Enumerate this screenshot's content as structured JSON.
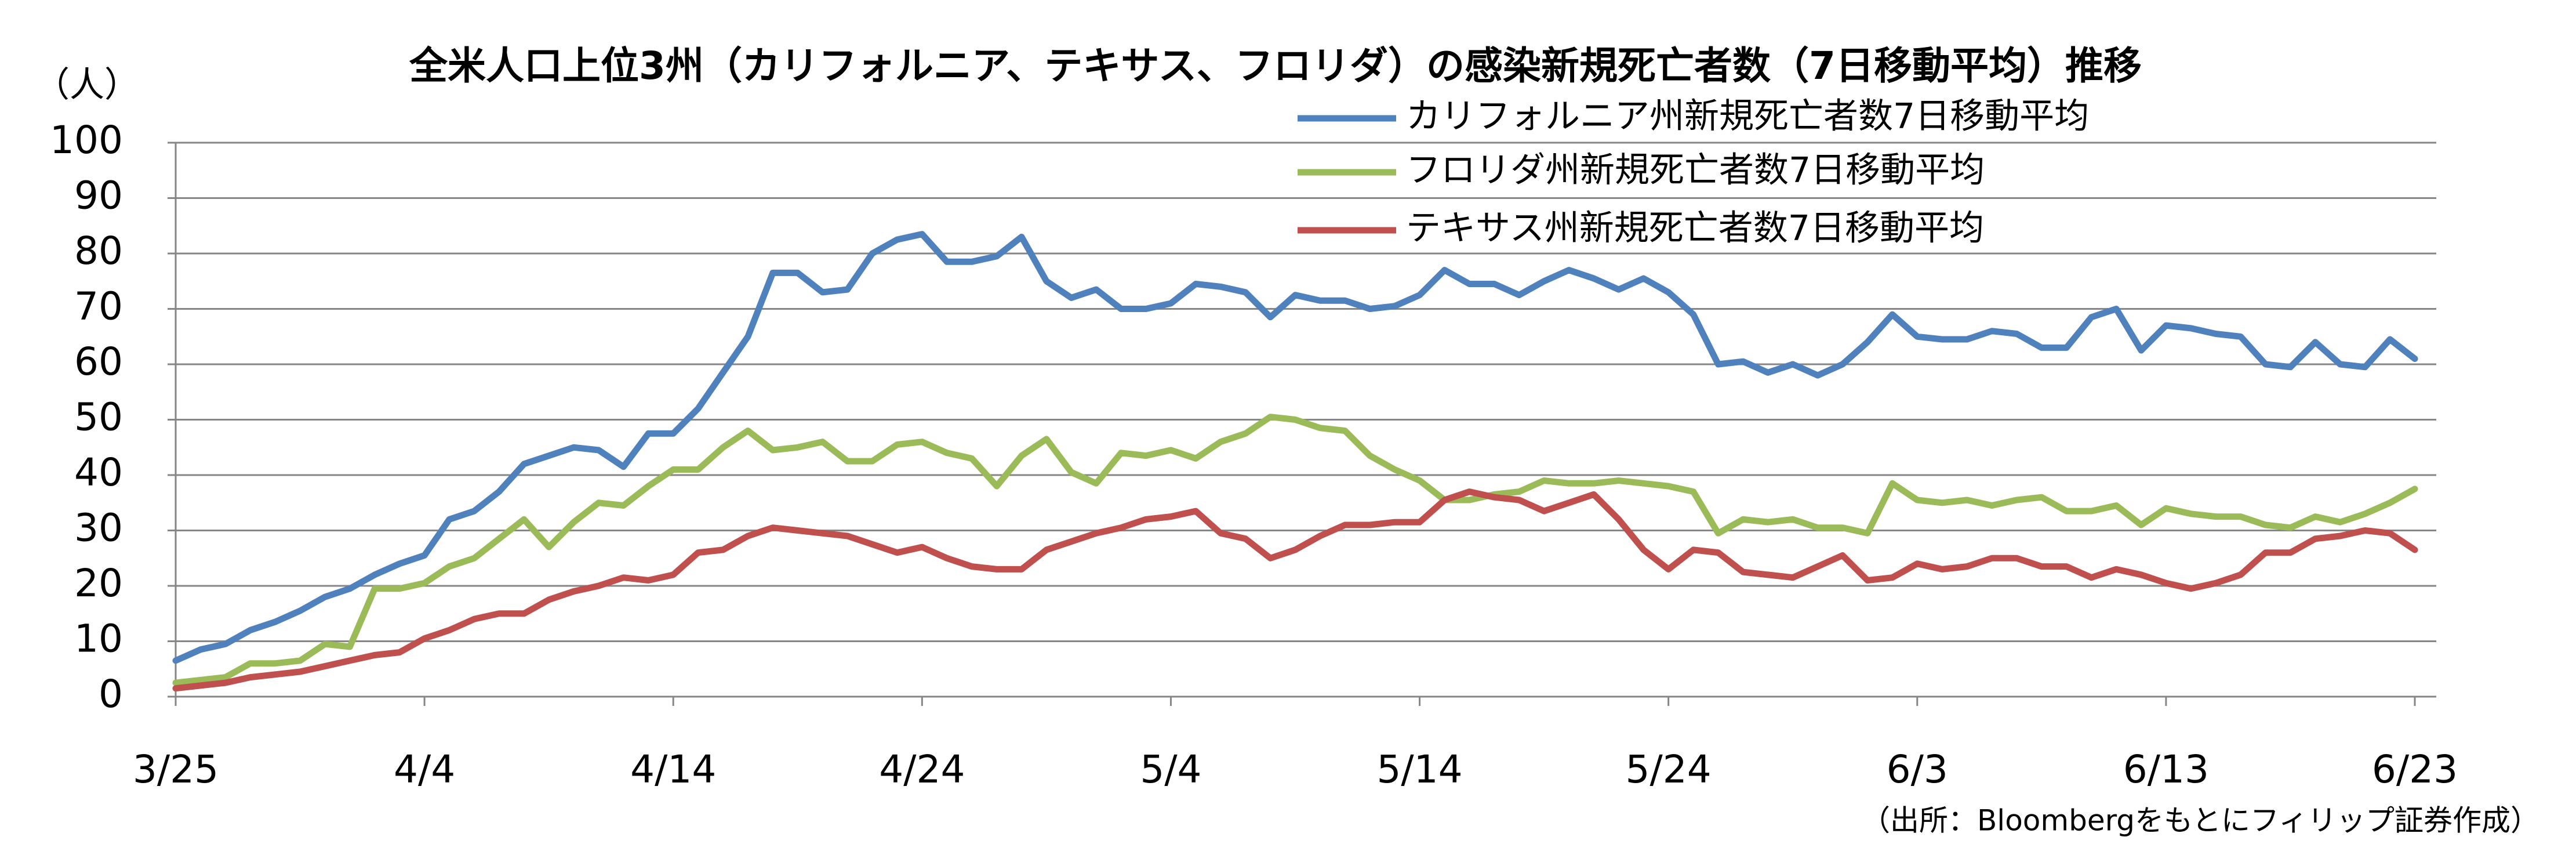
{
  "chart_data": {
    "type": "line",
    "title": "全米人口上位3州（カリフォルニア、テキサス、フロリダ）の感染新規死亡者数（7日移動平均）推移",
    "y_label": "（人）",
    "source": "（出所：Bloombergをもとにフィリップ証券作成）",
    "categories": [
      "3/25",
      null,
      null,
      null,
      null,
      null,
      null,
      null,
      null,
      null,
      "4/4",
      null,
      null,
      null,
      null,
      null,
      null,
      null,
      null,
      null,
      "4/14",
      null,
      null,
      null,
      null,
      null,
      null,
      null,
      null,
      null,
      "4/24",
      null,
      null,
      null,
      null,
      null,
      null,
      null,
      null,
      null,
      "5/4",
      null,
      null,
      null,
      null,
      null,
      null,
      null,
      null,
      null,
      "5/14",
      null,
      null,
      null,
      null,
      null,
      null,
      null,
      null,
      null,
      "5/24",
      null,
      null,
      null,
      null,
      null,
      null,
      null,
      null,
      null,
      "6/3",
      null,
      null,
      null,
      null,
      null,
      null,
      null,
      null,
      null,
      "6/13",
      null,
      null,
      null,
      null,
      null,
      null,
      null,
      null,
      null,
      "6/23"
    ],
    "series": [
      {
        "name": "カリフォルニア州新規死亡者数7日移動平均",
        "color": "#4f81bd",
        "values": [
          6.5,
          8.5,
          9.5,
          12,
          13.5,
          15.5,
          18,
          19.5,
          22,
          24,
          25.5,
          32,
          33.5,
          37,
          42,
          43.5,
          45,
          44.5,
          41.5,
          47.5,
          47.5,
          52,
          58.5,
          65,
          76.5,
          76.5,
          73,
          73.5,
          80,
          82.5,
          83.5,
          78.5,
          78.5,
          79.5,
          83,
          75,
          72,
          73.5,
          70,
          70,
          71,
          74.5,
          74,
          73,
          68.5,
          72.5,
          71.5,
          71.5,
          70,
          70.5,
          72.5,
          77,
          74.5,
          74.5,
          72.5,
          75,
          77,
          75.5,
          73.5,
          75.5,
          73,
          69,
          60,
          60.5,
          58.5,
          60,
          58,
          60,
          64,
          69,
          65,
          64.5,
          64.5,
          66,
          65.5,
          63,
          63,
          68.5,
          70,
          62.5,
          67,
          66.5,
          65.5,
          65,
          60,
          59.5,
          64,
          60,
          59.5,
          64.5,
          61
        ]
      },
      {
        "name": "フロリダ州新規死亡者数7日移動平均",
        "color": "#9bbb59",
        "values": [
          2.5,
          3,
          3.5,
          6,
          6,
          6.5,
          9.5,
          9,
          19.5,
          19.5,
          20.5,
          23.5,
          25,
          28.5,
          32,
          27,
          31.5,
          35,
          34.5,
          38,
          41,
          41,
          45,
          48,
          44.5,
          45,
          46,
          42.5,
          42.5,
          45.5,
          46,
          44,
          43,
          38,
          43.5,
          46.5,
          40.5,
          38.5,
          44,
          43.5,
          44.5,
          43,
          46,
          47.5,
          50.5,
          50,
          48.5,
          48,
          43.5,
          41,
          39,
          35.5,
          35.5,
          36.5,
          37,
          39,
          38.5,
          38.5,
          39,
          38.5,
          38,
          37,
          29.5,
          32,
          31.5,
          32,
          30.5,
          30.5,
          29.5,
          38.5,
          35.5,
          35,
          35.5,
          34.5,
          35.5,
          36,
          33.5,
          33.5,
          34.5,
          31,
          34,
          33,
          32.5,
          32.5,
          31,
          30.5,
          32.5,
          31.5,
          33,
          35,
          37.5
        ]
      },
      {
        "name": "テキサス州新規死亡者数7日移動平均",
        "color": "#c0504d",
        "values": [
          1.5,
          2,
          2.5,
          3.5,
          4,
          4.5,
          5.5,
          6.5,
          7.5,
          8,
          10.5,
          12,
          14,
          15,
          15,
          17.5,
          19,
          20,
          21.5,
          21,
          22,
          26,
          26.5,
          29,
          30.5,
          30,
          29.5,
          29,
          27.5,
          26,
          27,
          25,
          23.5,
          23,
          23,
          26.5,
          28,
          29.5,
          30.5,
          32,
          32.5,
          33.5,
          29.5,
          28.5,
          25,
          26.5,
          29,
          31,
          31,
          31.5,
          31.5,
          35.5,
          37,
          36,
          35.5,
          33.5,
          35,
          36.5,
          32,
          26.5,
          23,
          26.5,
          26,
          22.5,
          22,
          21.5,
          23.5,
          25.5,
          21,
          21.5,
          24,
          23,
          23.5,
          25,
          25,
          23.5,
          23.5,
          21.5,
          23,
          22,
          20.5,
          19.5,
          20.5,
          22,
          26,
          26,
          28.5,
          29,
          30,
          29.5,
          26.5
        ]
      }
    ],
    "ylim": [
      0,
      100
    ],
    "yticks": [
      0,
      10,
      20,
      30,
      40,
      50,
      60,
      70,
      80,
      90,
      100
    ],
    "grid": true
  }
}
